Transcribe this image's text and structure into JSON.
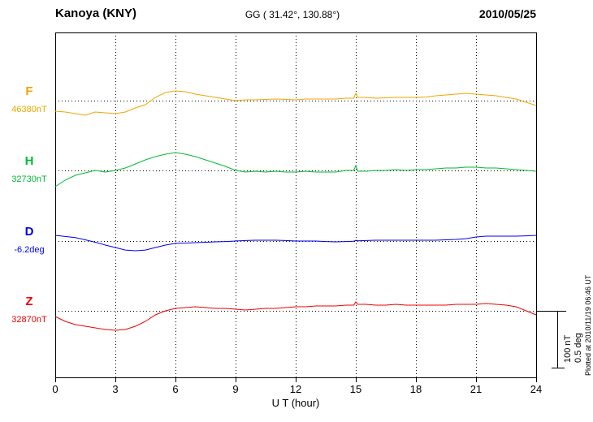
{
  "header": {
    "station": "Kanoya (KNY)",
    "coordinates": "GG ( 31.42°, 130.88°)",
    "date": "2010/05/25"
  },
  "axis": {
    "xlabel": "U T (hour)"
  },
  "scale_bar": {
    "label_nt": "100 nT",
    "label_deg": "0.5 deg"
  },
  "plotted_note": "Plotted at 2010/11/19 06:46 UT",
  "chart_data": {
    "type": "line",
    "title": "Kanoya (KNY) magnetogram 2010/05/25",
    "xlabel": "U T (hour)",
    "x_range": [
      0,
      24
    ],
    "x_ticks": [
      0,
      3,
      6,
      9,
      12,
      15,
      18,
      21,
      24
    ],
    "x_tick_labels": [
      "0",
      "3",
      "6",
      "9",
      "12",
      "15",
      "18",
      "21",
      "24"
    ],
    "grid": "vertical dotted lines every 3 hours; dotted horizontal baseline per trace",
    "legend_position": "left margin, one label per stacked trace",
    "scale": {
      "nT_per_div": 100,
      "deg_per_div": 0.5
    },
    "values_are": "offsets from each trace baseline value, in the series unit",
    "x": [
      0,
      0.5,
      1,
      1.5,
      2,
      2.5,
      3,
      3.5,
      4,
      4.5,
      5,
      5.5,
      6,
      6.5,
      7,
      7.5,
      8,
      8.5,
      9,
      9.5,
      10,
      10.5,
      11,
      11.5,
      12,
      12.5,
      13,
      13.5,
      14,
      14.5,
      14.9,
      15,
      15.1,
      15.5,
      16,
      16.5,
      17,
      17.5,
      18,
      18.5,
      19,
      19.5,
      20,
      20.5,
      21,
      21.5,
      22,
      22.5,
      23,
      23.5,
      24
    ],
    "series": [
      {
        "name": "F",
        "unit": "nT",
        "base_value": 46380,
        "base_label": "46380nT",
        "color": "#f0a500",
        "values": [
          -18.6,
          -20,
          -22.9,
          -25.7,
          -20,
          -21.4,
          -22.9,
          -20,
          -12.9,
          -7.1,
          5.7,
          14.3,
          17.1,
          15.7,
          11.4,
          8.6,
          5.7,
          2.9,
          0,
          1.4,
          1.4,
          2.1,
          2.9,
          2.1,
          1.4,
          2.9,
          2.9,
          2.9,
          2.9,
          4.3,
          4.3,
          12.9,
          5.7,
          5.7,
          4.3,
          5,
          5.7,
          5.7,
          5.7,
          6.4,
          8.6,
          10,
          11.4,
          12.9,
          11.4,
          10,
          8.6,
          5.7,
          2.9,
          -2.9,
          -8.6
        ]
      },
      {
        "name": "H",
        "unit": "nT",
        "base_value": 32730,
        "base_label": "32730nT",
        "color": "#00bb33",
        "values": [
          -28.6,
          -17.1,
          -8.6,
          -4.3,
          0,
          -2.9,
          0,
          4.3,
          11.4,
          18.6,
          24.3,
          28.6,
          31.4,
          28.6,
          24.3,
          18.6,
          12.9,
          7.1,
          0,
          -2.9,
          -1.4,
          -2.9,
          -1.4,
          -2.9,
          -2.9,
          -1.4,
          -2.9,
          -2.9,
          -2.9,
          0,
          0,
          8.6,
          -1.4,
          -1.4,
          0,
          0,
          1.4,
          0,
          1.4,
          1.4,
          2.9,
          4.3,
          4.3,
          5.7,
          5.7,
          4.3,
          4.3,
          2.9,
          1.4,
          0,
          -1.4
        ]
      },
      {
        "name": "D",
        "unit": "deg",
        "base_value": -6.2,
        "base_label": "-6.2deg",
        "color": "#0000ee",
        "values": [
          0.05,
          0.04,
          0.03,
          0.011,
          -0.011,
          -0.036,
          -0.057,
          -0.079,
          -0.086,
          -0.079,
          -0.057,
          -0.036,
          -0.021,
          -0.018,
          -0.014,
          -0.011,
          -0.007,
          -0.004,
          0,
          0.004,
          0.007,
          0.007,
          0.007,
          0.004,
          0,
          0,
          0,
          -0.004,
          -0.007,
          -0.004,
          -0.002,
          0.006,
          0.002,
          0.004,
          0.007,
          0.007,
          0.007,
          0.007,
          0.007,
          0.007,
          0.007,
          0.011,
          0.014,
          0.021,
          0.036,
          0.043,
          0.043,
          0.043,
          0.043,
          0.046,
          0.05
        ]
      },
      {
        "name": "Z",
        "unit": "nT",
        "base_value": 32870,
        "base_label": "32870nT",
        "color": "#ee0000",
        "values": [
          -10,
          -18.6,
          -24.3,
          -27.1,
          -30,
          -32.9,
          -34.3,
          -32.9,
          -27.1,
          -18.6,
          -7.1,
          0,
          4.3,
          5.7,
          7.1,
          5.7,
          4.3,
          4.3,
          2.9,
          1.4,
          2.9,
          4.3,
          4.3,
          5.7,
          7.1,
          7.1,
          8.6,
          8.6,
          8.6,
          10,
          10,
          15.7,
          11.4,
          11.4,
          10,
          10,
          11.4,
          10,
          10,
          10,
          10,
          10,
          11.4,
          11.4,
          11.4,
          12.9,
          11.4,
          10,
          7.1,
          0,
          -7.1
        ]
      }
    ]
  }
}
